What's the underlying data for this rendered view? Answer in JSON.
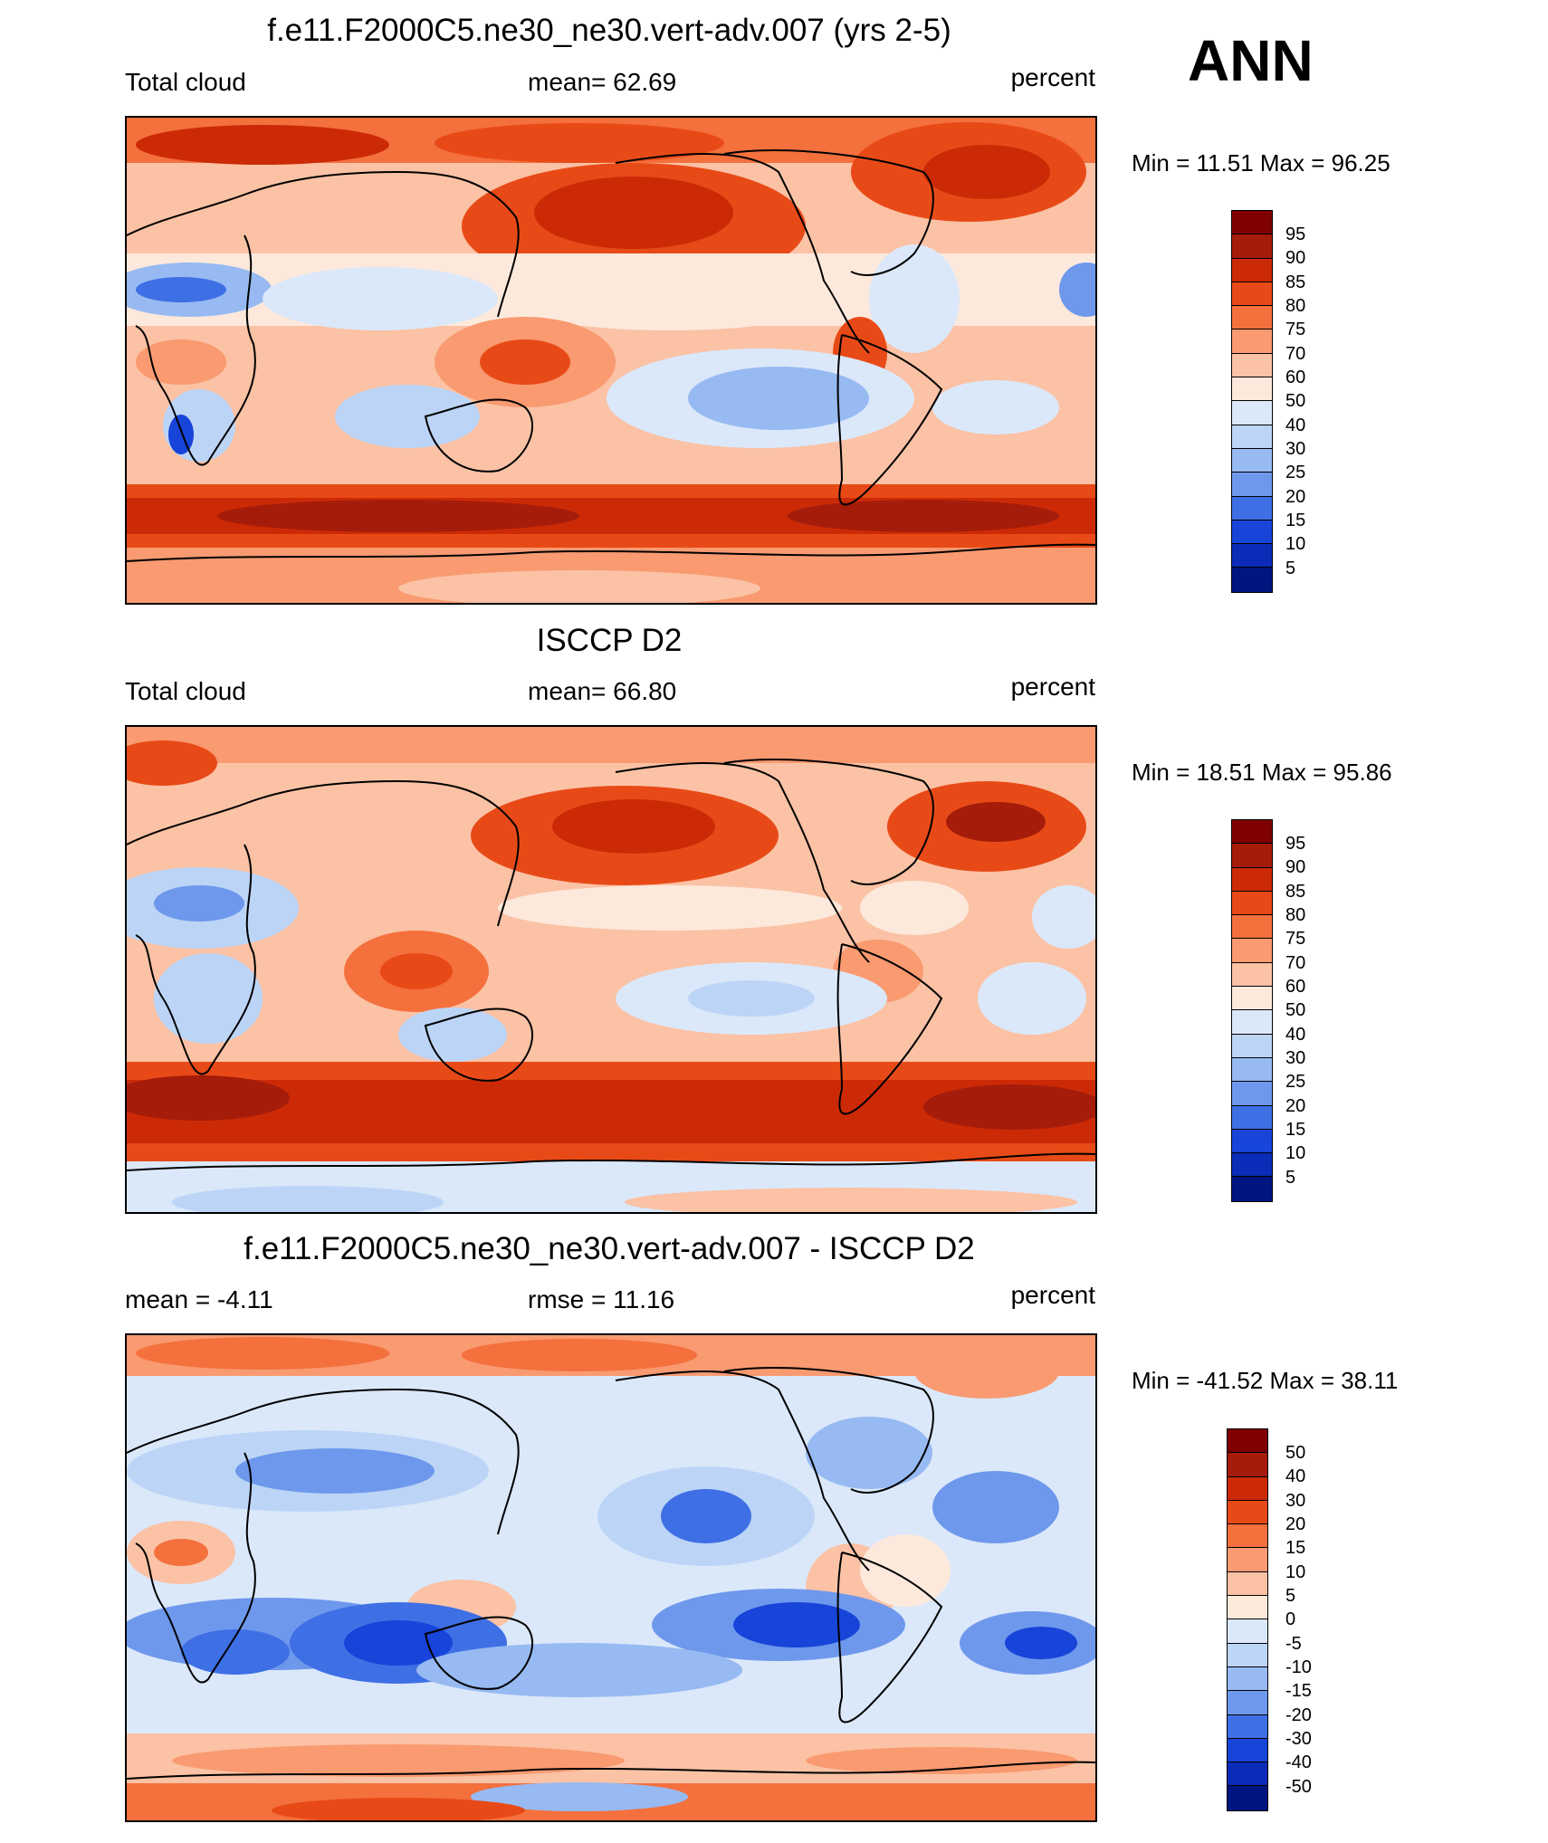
{
  "season": "ANN",
  "panels": [
    {
      "id": "model",
      "title": "f.e11.F2000C5.ne30_ne30.vert-adv.007 (yrs 2-5)",
      "left": "Total cloud",
      "center": "mean=  62.69",
      "right": "percent",
      "minmax": "Min =  11.51 Max =  96.25",
      "levels": [
        "95",
        "90",
        "85",
        "80",
        "75",
        "70",
        "60",
        "50",
        "40",
        "30",
        "25",
        "20",
        "15",
        "10",
        "5"
      ],
      "colors": [
        "#7f0000",
        "#a51c0a",
        "#cc2a06",
        "#e84a17",
        "#f4703d",
        "#f99a70",
        "#fbc2a5",
        "#fde9dc",
        "#dbe8fa",
        "#bcd5f7",
        "#97baf2",
        "#6e98ec",
        "#3f6fe5",
        "#1744d9",
        "#0a2cb8",
        "#001580"
      ]
    },
    {
      "id": "obs",
      "title": "ISCCP D2",
      "left": "Total cloud",
      "center": "mean=  66.80",
      "right": "percent",
      "minmax": "Min =  18.51 Max =  95.86",
      "levels": [
        "95",
        "90",
        "85",
        "80",
        "75",
        "70",
        "60",
        "50",
        "40",
        "30",
        "25",
        "20",
        "15",
        "10",
        "5"
      ],
      "colors": [
        "#7f0000",
        "#a51c0a",
        "#cc2a06",
        "#e84a17",
        "#f4703d",
        "#f99a70",
        "#fbc2a5",
        "#fde9dc",
        "#dbe8fa",
        "#bcd5f7",
        "#97baf2",
        "#6e98ec",
        "#3f6fe5",
        "#1744d9",
        "#0a2cb8",
        "#001580"
      ]
    },
    {
      "id": "diff",
      "title": "f.e11.F2000C5.ne30_ne30.vert-adv.007 - ISCCP D2",
      "left": "mean =  -4.11",
      "center": "rmse =  11.16",
      "right": "percent",
      "minmax": "Min = -41.52 Max =  38.11",
      "levels": [
        "50",
        "40",
        "30",
        "20",
        "15",
        "10",
        "5",
        "0",
        "-5",
        "-10",
        "-15",
        "-20",
        "-30",
        "-40",
        "-50"
      ],
      "colors": [
        "#7f0000",
        "#a51c0a",
        "#cc2a06",
        "#e84a17",
        "#f4703d",
        "#f99a70",
        "#fbc2a5",
        "#fde9dc",
        "#dbe8fa",
        "#bcd5f7",
        "#97baf2",
        "#6e98ec",
        "#3f6fe5",
        "#1744d9",
        "#0a2cb8",
        "#001580"
      ]
    }
  ]
}
